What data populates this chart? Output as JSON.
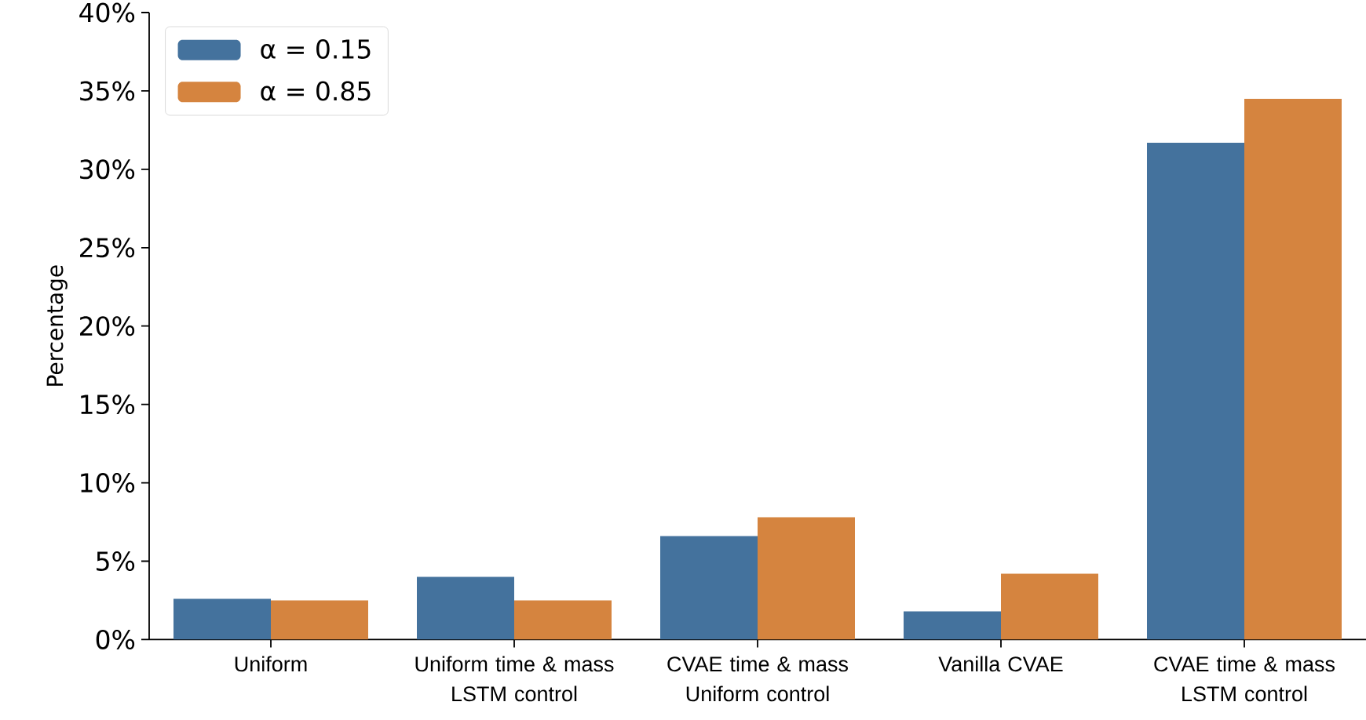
{
  "chart_data": {
    "type": "bar",
    "ylabel": "Percentage",
    "categories": [
      "Uniform",
      "Uniform time & mass\nLSTM control",
      "CVAE time & mass\nUniform control",
      "Vanilla CVAE",
      "CVAE time & mass\nLSTM control"
    ],
    "series": [
      {
        "name": "α = 0.15",
        "color": "#44729d",
        "values": [
          2.6,
          4.0,
          6.6,
          1.8,
          31.7
        ]
      },
      {
        "name": "α = 0.85",
        "color": "#d5843f",
        "values": [
          2.5,
          2.5,
          7.8,
          4.2,
          34.5
        ]
      }
    ],
    "ylim": [
      0,
      40
    ],
    "yticks": [
      {
        "value": 0,
        "label": "0%"
      },
      {
        "value": 5,
        "label": "5%"
      },
      {
        "value": 10,
        "label": "10%"
      },
      {
        "value": 15,
        "label": "15%"
      },
      {
        "value": 20,
        "label": "20%"
      },
      {
        "value": 25,
        "label": "25%"
      },
      {
        "value": 30,
        "label": "30%"
      },
      {
        "value": 35,
        "label": "35%"
      },
      {
        "value": 40,
        "label": "40%"
      }
    ],
    "legend": "top left"
  }
}
